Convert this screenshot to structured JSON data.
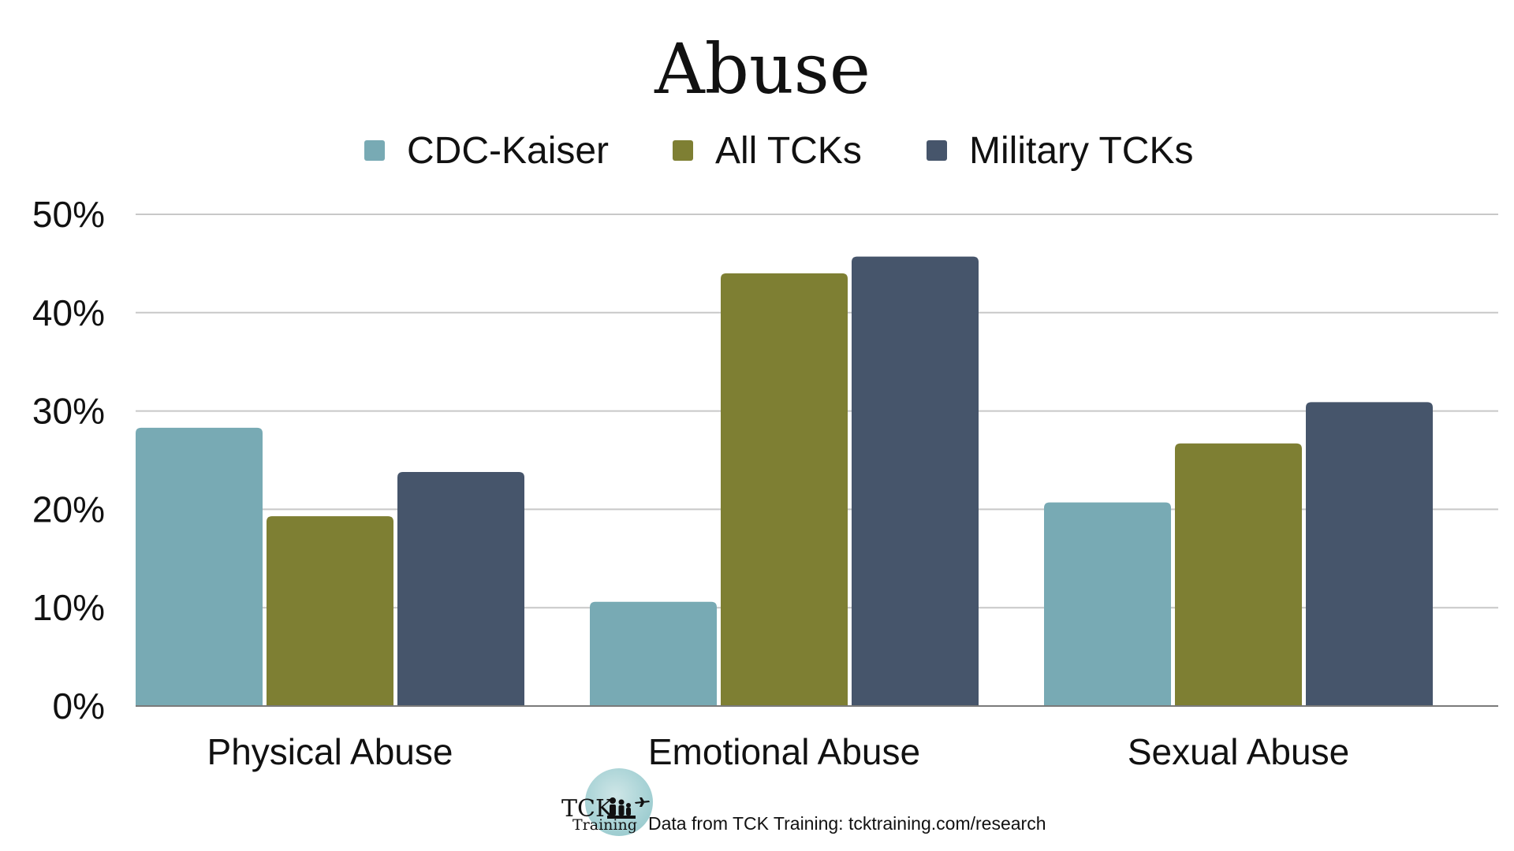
{
  "chart_data": {
    "type": "bar",
    "title": "Abuse",
    "categories": [
      "Physical Abuse",
      "Emotional Abuse",
      "Sexual Abuse"
    ],
    "series": [
      {
        "name": "CDC-Kaiser",
        "values": [
          28.3,
          10.6,
          20.7
        ],
        "color": "#78aab4"
      },
      {
        "name": "All TCKs",
        "values": [
          19.3,
          44.0,
          26.7
        ],
        "color": "#7e7f33"
      },
      {
        "name": "Military TCKs",
        "values": [
          23.8,
          45.7,
          30.9
        ],
        "color": "#46556b"
      }
    ],
    "ylim": [
      0,
      50
    ],
    "yticks": [
      "0%",
      "10%",
      "20%",
      "30%",
      "40%",
      "50%"
    ],
    "ytick_values": [
      0,
      10,
      20,
      30,
      40,
      50
    ],
    "grid": true,
    "legend_position": "top"
  },
  "footer": {
    "logo_tck": "TCK",
    "logo_training": "Training",
    "source_text": "Data from TCK Training: tcktraining.com/research"
  }
}
